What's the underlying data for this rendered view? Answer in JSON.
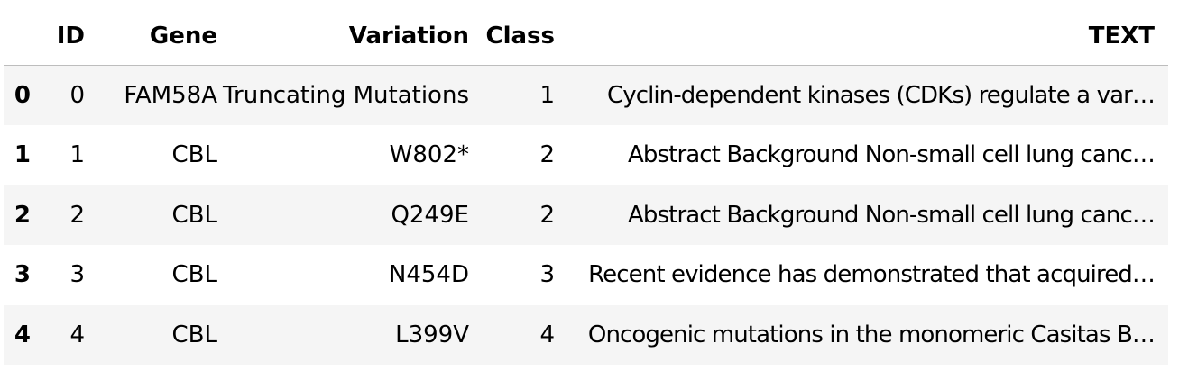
{
  "table": {
    "columns": [
      "",
      "ID",
      "Gene",
      "Variation",
      "Class",
      "TEXT"
    ],
    "rows": [
      {
        "index": "0",
        "id": "0",
        "gene": "FAM58A",
        "variation": "Truncating Mutations",
        "class": "1",
        "text": "Cyclin-dependent kinases (CDKs) regulate a var…"
      },
      {
        "index": "1",
        "id": "1",
        "gene": "CBL",
        "variation": "W802*",
        "class": "2",
        "text": "Abstract Background Non-small cell lung canc…"
      },
      {
        "index": "2",
        "id": "2",
        "gene": "CBL",
        "variation": "Q249E",
        "class": "2",
        "text": "Abstract Background Non-small cell lung canc…"
      },
      {
        "index": "3",
        "id": "3",
        "gene": "CBL",
        "variation": "N454D",
        "class": "3",
        "text": "Recent evidence has demonstrated that acquired…"
      },
      {
        "index": "4",
        "id": "4",
        "gene": "CBL",
        "variation": "L399V",
        "class": "4",
        "text": "Oncogenic mutations in the monomeric Casitas B…"
      }
    ]
  }
}
